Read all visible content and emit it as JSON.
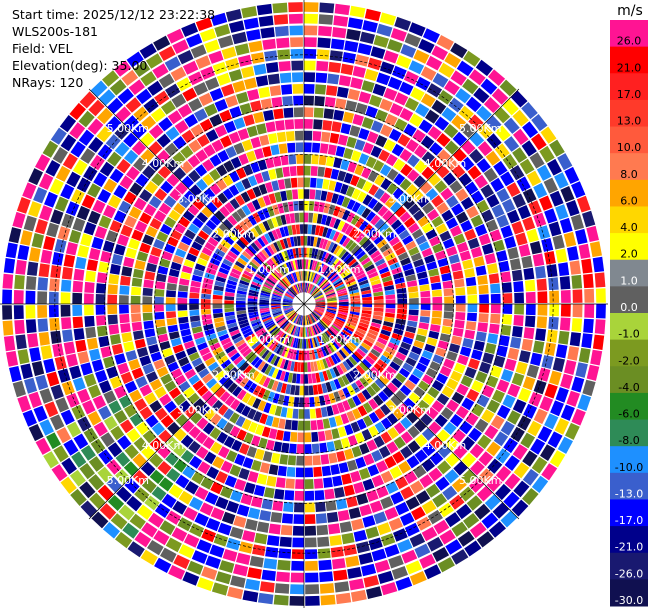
{
  "header": {
    "start_time": "Start time: 2025/12/12 23:22:38",
    "instrument": "WLS200s-181",
    "field": "Field: VEL",
    "elevation": "Elevation(deg): 35.00",
    "nrays": "NRays: 120"
  },
  "chart_data": {
    "type": "heatmap",
    "projection": "polar",
    "title": "",
    "field": "VEL",
    "nrays": 120,
    "elevation_deg": 35.0,
    "range_rings_km": [
      {
        "value": 1,
        "label": "1.00Km"
      },
      {
        "value": 2,
        "label": "2.00Km"
      },
      {
        "value": 3,
        "label": "3.00Km"
      },
      {
        "value": 4,
        "label": "4.00Km"
      },
      {
        "value": 5,
        "label": "5.00Km"
      }
    ],
    "max_range_km": 6.1,
    "ring_label_angles_deg": [
      45,
      135,
      225,
      315
    ],
    "colorbar": {
      "units": "m/s",
      "levels": [
        {
          "label": "26.0",
          "color": "#ff1493"
        },
        {
          "label": "21.0",
          "color": "#ff0000"
        },
        {
          "label": "17.0",
          "color": "#ff2020"
        },
        {
          "label": "13.0",
          "color": "#ff3a2a"
        },
        {
          "label": "10.0",
          "color": "#ff5a3c"
        },
        {
          "label": "8.0",
          "color": "#ff7a50"
        },
        {
          "label": "6.0",
          "color": "#ffa500"
        },
        {
          "label": "4.0",
          "color": "#ffd700"
        },
        {
          "label": "2.0",
          "color": "#ffff00"
        },
        {
          "label": "1.0",
          "color": "#808890"
        },
        {
          "label": "0.0",
          "color": "#606060"
        },
        {
          "label": "-1.0",
          "color": "#a9d43a"
        },
        {
          "label": "-2.0",
          "color": "#7c9a20"
        },
        {
          "label": "-4.0",
          "color": "#6b8e23"
        },
        {
          "label": "-6.0",
          "color": "#228b22"
        },
        {
          "label": "-8.0",
          "color": "#2e8b57"
        },
        {
          "label": "-10.0",
          "color": "#1e90ff"
        },
        {
          "label": "-13.0",
          "color": "#3a5fcd"
        },
        {
          "label": "-17.0",
          "color": "#0000ff"
        },
        {
          "label": "-21.0",
          "color": "#00008b"
        },
        {
          "label": "-26.0",
          "color": "#191970"
        },
        {
          "label": "-30.0",
          "color": "#101050"
        }
      ]
    }
  }
}
